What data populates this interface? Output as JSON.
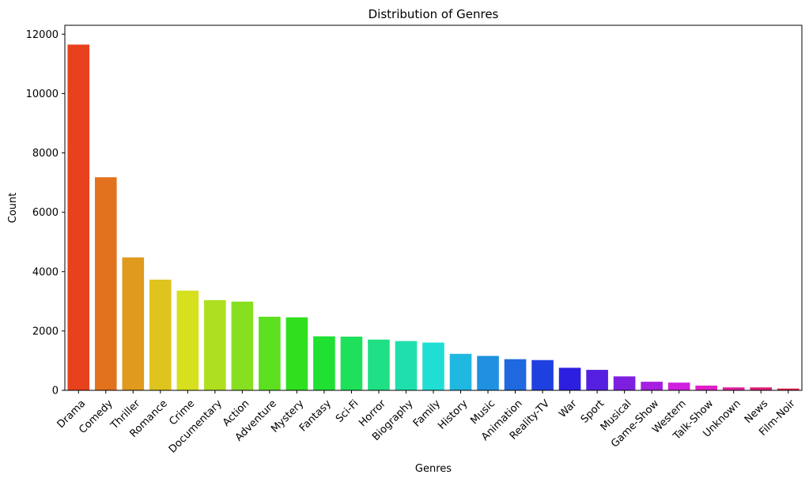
{
  "chart_data": {
    "type": "bar",
    "title": "Distribution of Genres",
    "xlabel": "Genres",
    "ylabel": "Count",
    "ylim": [
      0,
      12300
    ],
    "yticks": [
      0,
      2000,
      4000,
      6000,
      8000,
      10000,
      12000
    ],
    "grid": false,
    "categories": [
      "Drama",
      "Comedy",
      "Thriller",
      "Romance",
      "Crime",
      "Documentary",
      "Action",
      "Adventure",
      "Mystery",
      "Fantasy",
      "Sci-Fi",
      "Horror",
      "Biography",
      "Family",
      "History",
      "Music",
      "Animation",
      "Reality-TV",
      "War",
      "Sport",
      "Musical",
      "Game-Show",
      "Western",
      "Talk-Show",
      "Unknown",
      "News",
      "Film-Noir"
    ],
    "values": [
      11650,
      7180,
      4480,
      3730,
      3360,
      3040,
      2990,
      2480,
      2460,
      1820,
      1810,
      1710,
      1660,
      1610,
      1230,
      1160,
      1050,
      1020,
      760,
      690,
      470,
      290,
      260,
      160,
      100,
      100,
      60
    ],
    "colors": [
      "#e8411e",
      "#e2721d",
      "#e09a1e",
      "#dfc31e",
      "#d6e01e",
      "#aee01f",
      "#86e01f",
      "#5ce01f",
      "#30e01f",
      "#1fe033",
      "#1fe05b",
      "#1fe084",
      "#1fe0ac",
      "#1fdfd5",
      "#1fb8e0",
      "#1f91e0",
      "#1f68e0",
      "#1f40e0",
      "#2d1fe0",
      "#551fe0",
      "#7e1fe0",
      "#a71fe0",
      "#d01fe0",
      "#e01fc8",
      "#e01f9f",
      "#e01f77",
      "#e01f4e"
    ]
  }
}
